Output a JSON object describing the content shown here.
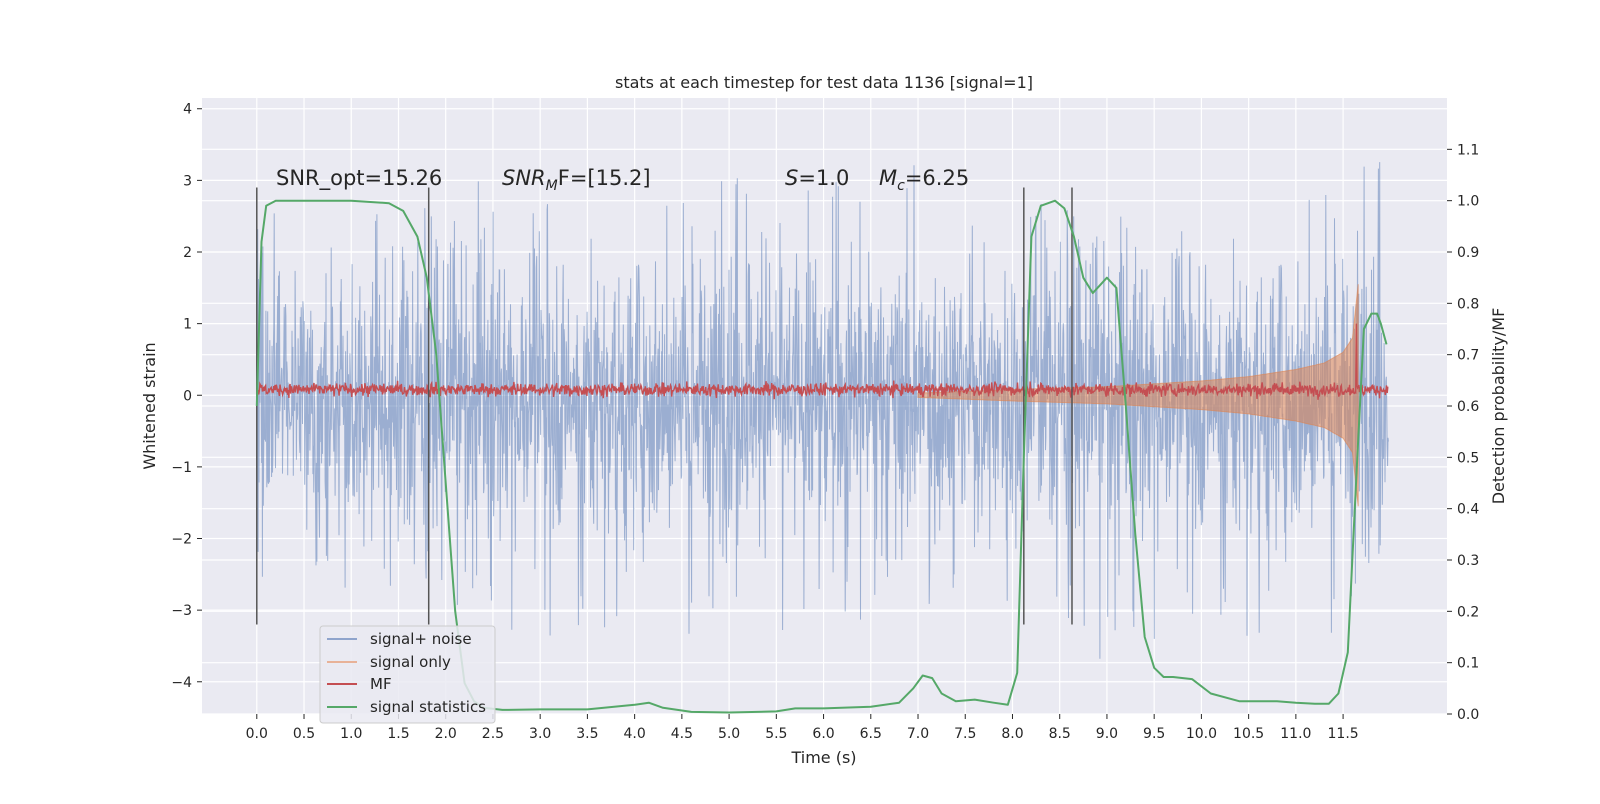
{
  "chart_data": {
    "type": "line",
    "title": "stats at each timestep for test data 1136 [signal=1]",
    "xlabel": "Time (s)",
    "ylabel": "Whitened strain",
    "y2label": "Detection probability/MF",
    "xlim": [
      -0.58,
      12.6
    ],
    "ylim": [
      -4.45,
      4.15
    ],
    "y2lim": [
      -0.0,
      1.2
    ],
    "xticks": [
      0.0,
      0.5,
      1.0,
      1.5,
      2.0,
      2.5,
      3.0,
      3.5,
      4.0,
      4.5,
      5.0,
      5.5,
      6.0,
      6.5,
      7.0,
      7.5,
      8.0,
      8.5,
      9.0,
      9.5,
      10.0,
      10.5,
      11.0,
      11.5
    ],
    "xtick_labels": [
      "0.0",
      "0.5",
      "1.0",
      "1.5",
      "2.0",
      "2.5",
      "3.0",
      "3.5",
      "4.0",
      "4.5",
      "5.0",
      "5.5",
      "6.0",
      "6.5",
      "7.0",
      "7.5",
      "8.0",
      "8.5",
      "9.0",
      "9.5",
      "10.0",
      "10.5",
      "11.0",
      "11.5"
    ],
    "yticks": [
      -4,
      -3,
      -2,
      -1,
      0,
      1,
      2,
      3,
      4
    ],
    "ytick_labels": [
      "−4",
      "−3",
      "−2",
      "−1",
      "0",
      "1",
      "2",
      "3",
      "4"
    ],
    "y2ticks": [
      0.0,
      0.1,
      0.2,
      0.3,
      0.4,
      0.5,
      0.6,
      0.7,
      0.8,
      0.9,
      1.0,
      1.1
    ],
    "y2tick_labels": [
      "0.0",
      "0.1",
      "0.2",
      "0.3",
      "0.4",
      "0.5",
      "0.6",
      "0.7",
      "0.8",
      "0.9",
      "1.0",
      "1.1"
    ],
    "grid": true,
    "legend_position": "lower-left",
    "noise_time_range": [
      0.0,
      11.98
    ],
    "noise_envelope": {
      "t": [
        0.0,
        1.0,
        2.0,
        3.0,
        4.0,
        5.0,
        6.0,
        7.0,
        8.0,
        9.0,
        10.0,
        11.0,
        11.98
      ],
      "upper": [
        2.6,
        2.7,
        2.7,
        3.7,
        3.6,
        3.2,
        3.0,
        3.3,
        2.9,
        2.5,
        2.8,
        3.6,
        3.4
      ],
      "lower": [
        -2.8,
        -2.7,
        -2.9,
        -3.5,
        -3.3,
        -3.5,
        -3.2,
        -3.1,
        -3.0,
        -3.8,
        -3.1,
        -3.9,
        -2.6
      ]
    },
    "signal_envelope": {
      "t": [
        7.0,
        8.0,
        9.0,
        10.0,
        10.5,
        11.0,
        11.3,
        11.5,
        11.6,
        11.66
      ],
      "amplitude": [
        0.03,
        0.08,
        0.12,
        0.2,
        0.26,
        0.36,
        0.45,
        0.6,
        0.8,
        1.55
      ]
    },
    "mf_level": 0.08,
    "mf_spike": {
      "t": 11.64,
      "value": 1.0
    },
    "signal_statistics": {
      "t": [
        0.0,
        0.05,
        0.1,
        0.2,
        0.5,
        1.0,
        1.4,
        1.55,
        1.7,
        1.8,
        1.9,
        2.0,
        2.1,
        2.2,
        2.3,
        2.4,
        2.6,
        3.0,
        3.5,
        4.0,
        4.15,
        4.3,
        4.6,
        5.0,
        5.5,
        5.7,
        6.0,
        6.5,
        6.8,
        6.95,
        7.05,
        7.15,
        7.25,
        7.4,
        7.6,
        7.8,
        7.95,
        8.05,
        8.12,
        8.2,
        8.3,
        8.45,
        8.55,
        8.65,
        8.75,
        8.85,
        9.0,
        9.1,
        9.2,
        9.3,
        9.4,
        9.5,
        9.6,
        9.7,
        9.9,
        10.1,
        10.4,
        10.8,
        11.0,
        11.2,
        11.35,
        11.45,
        11.55,
        11.65,
        11.72,
        11.8,
        11.86,
        11.9,
        11.96
      ],
      "values": [
        0.6,
        0.92,
        0.99,
        1.0,
        1.0,
        1.0,
        0.995,
        0.98,
        0.93,
        0.85,
        0.7,
        0.45,
        0.2,
        0.06,
        0.025,
        0.012,
        0.008,
        0.009,
        0.009,
        0.018,
        0.022,
        0.012,
        0.004,
        0.003,
        0.005,
        0.011,
        0.011,
        0.014,
        0.022,
        0.05,
        0.075,
        0.07,
        0.04,
        0.025,
        0.028,
        0.022,
        0.018,
        0.08,
        0.5,
        0.93,
        0.99,
        1.0,
        0.985,
        0.93,
        0.85,
        0.82,
        0.85,
        0.83,
        0.6,
        0.35,
        0.15,
        0.09,
        0.072,
        0.072,
        0.068,
        0.04,
        0.025,
        0.025,
        0.022,
        0.02,
        0.02,
        0.04,
        0.12,
        0.5,
        0.75,
        0.78,
        0.78,
        0.76,
        0.72
      ]
    },
    "vertical_lines": {
      "x": [
        0.0,
        1.82,
        8.12,
        8.63
      ],
      "ymin": -3.2,
      "ymax": 2.9
    },
    "annotations": [
      {
        "key": "snr_opt",
        "text": "SNR_opt=15.26",
        "x": 0.2,
        "y": 3.0
      },
      {
        "key": "snr_mf",
        "text": "SNR_M F=[15.2]",
        "x": 2.6,
        "y": 3.0
      },
      {
        "key": "s",
        "text": "S=1.0",
        "x": 5.6,
        "y": 3.0
      },
      {
        "key": "mc",
        "text": "M_c=6.25",
        "x": 6.6,
        "y": 3.0
      }
    ],
    "series": [
      {
        "name": "signal+ noise",
        "color": "#4c72b0"
      },
      {
        "name": "signal only",
        "color": "#dd8452"
      },
      {
        "name": "MF",
        "color": "#c44e52"
      },
      {
        "name": "signal statistics",
        "color": "#55a868"
      }
    ]
  },
  "labels": {
    "title": "stats at each timestep for test data 1136 [signal=1]",
    "xlabel": "Time (s)",
    "ylabel": "Whitened strain",
    "y2label": "Detection probability/MF",
    "legend": [
      "signal+ noise",
      "signal only",
      "MF",
      "signal statistics"
    ]
  },
  "annotations": {
    "snr_opt": "SNR_opt=15.26",
    "snr_mf_main": "SNR",
    "snr_mf_sub": "M",
    "snr_mf_rest": "F=[15.2]",
    "s_sym": "S",
    "s_val": "=1.0",
    "mc_sym": "M",
    "mc_sub": "c",
    "mc_val": "=6.25"
  },
  "colors": {
    "axes_bg": "#eaeaf2",
    "grid": "#ffffff",
    "vline": "#555555"
  }
}
